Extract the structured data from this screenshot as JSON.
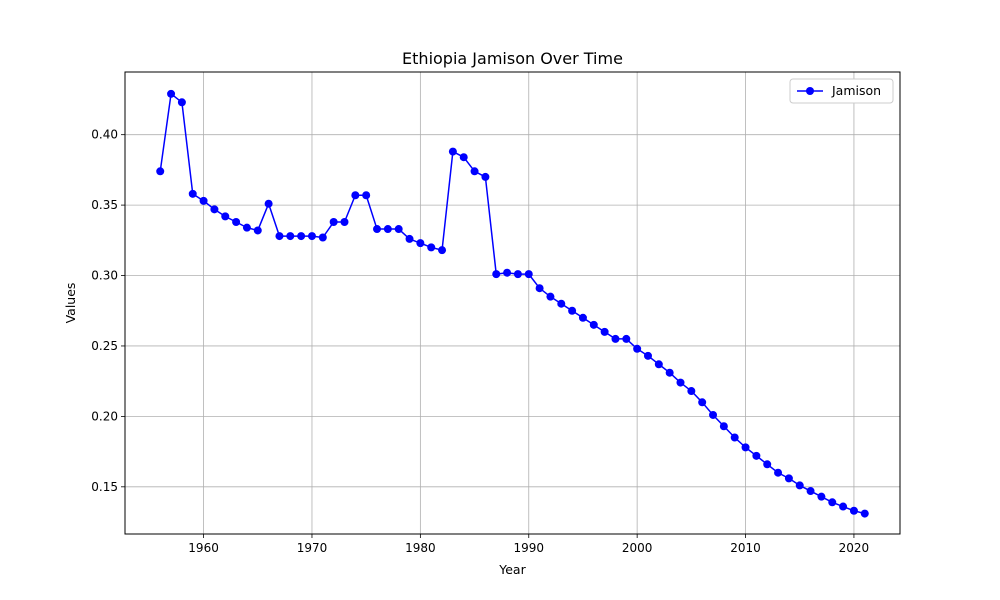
{
  "chart_data": {
    "type": "line",
    "title": "Ethiopia Jamison Over Time",
    "xlabel": "Year",
    "ylabel": "Values",
    "xlim": [
      1952.75,
      2024.25
    ],
    "ylim": [
      0.1165,
      0.4445
    ],
    "x_ticks": [
      1960,
      1970,
      1980,
      1990,
      2000,
      2010,
      2020
    ],
    "y_ticks": [
      0.15,
      0.2,
      0.25,
      0.3,
      0.35,
      0.4
    ],
    "y_tick_labels": [
      "0.15",
      "0.20",
      "0.25",
      "0.30",
      "0.35",
      "0.40"
    ],
    "grid": true,
    "legend_position": "top-right",
    "series": [
      {
        "name": "Jamison",
        "color": "#0000ff",
        "marker": "circle",
        "x": [
          1956,
          1957,
          1958,
          1959,
          1960,
          1961,
          1962,
          1963,
          1964,
          1965,
          1966,
          1967,
          1968,
          1969,
          1970,
          1971,
          1972,
          1973,
          1974,
          1975,
          1976,
          1977,
          1978,
          1979,
          1980,
          1981,
          1982,
          1983,
          1984,
          1985,
          1986,
          1987,
          1988,
          1989,
          1990,
          1991,
          1992,
          1993,
          1994,
          1995,
          1996,
          1997,
          1998,
          1999,
          2000,
          2001,
          2002,
          2003,
          2004,
          2005,
          2006,
          2007,
          2008,
          2009,
          2010,
          2011,
          2012,
          2013,
          2014,
          2015,
          2016,
          2017,
          2018,
          2019,
          2020,
          2021
        ],
        "y": [
          0.374,
          0.429,
          0.423,
          0.358,
          0.353,
          0.347,
          0.342,
          0.338,
          0.334,
          0.332,
          0.351,
          0.328,
          0.328,
          0.328,
          0.328,
          0.327,
          0.338,
          0.338,
          0.357,
          0.357,
          0.333,
          0.333,
          0.333,
          0.326,
          0.323,
          0.32,
          0.318,
          0.388,
          0.384,
          0.374,
          0.37,
          0.301,
          0.302,
          0.301,
          0.301,
          0.291,
          0.285,
          0.28,
          0.275,
          0.27,
          0.265,
          0.26,
          0.255,
          0.255,
          0.248,
          0.243,
          0.237,
          0.231,
          0.224,
          0.218,
          0.21,
          0.201,
          0.193,
          0.185,
          0.178,
          0.172,
          0.166,
          0.16,
          0.156,
          0.151,
          0.147,
          0.143,
          0.139,
          0.136,
          0.133,
          0.131
        ]
      }
    ]
  }
}
